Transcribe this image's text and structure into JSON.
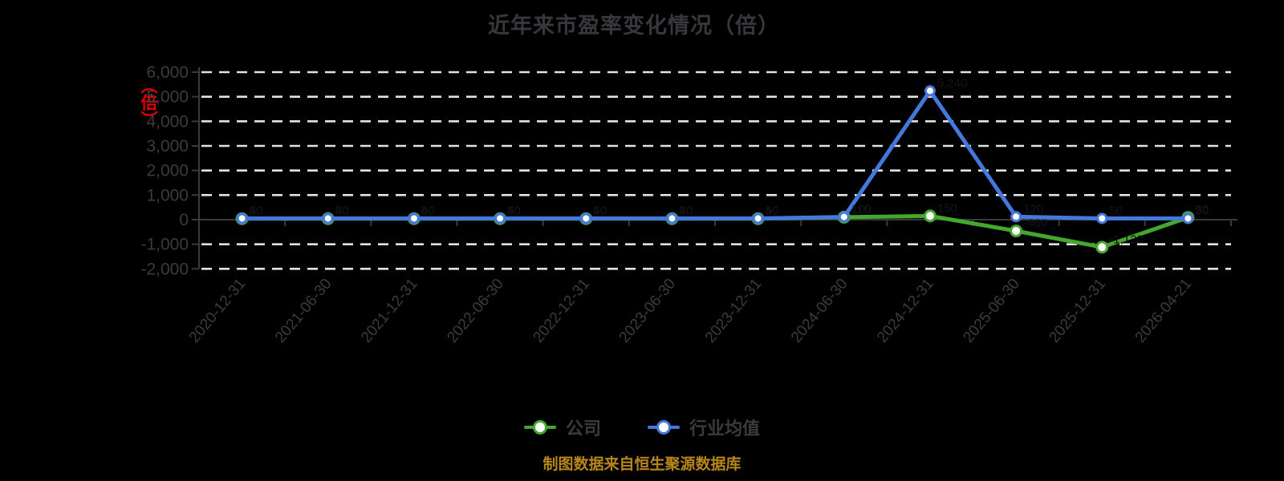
{
  "title": "近年来市盈率变化情况（倍）",
  "y_axis_unit": "（倍）",
  "footer": "制图数据来自恒生聚源数据库",
  "legend": [
    {
      "label": "公司",
      "color": "#43a82c"
    },
    {
      "label": "行业均值",
      "color": "#4478dd"
    }
  ],
  "colors": {
    "background": "#000000",
    "title_text": "#38383c",
    "axis_text": "#3b3b3f",
    "axis_line": "#3a3a3a",
    "gridline": "#e2e2e2",
    "company_green": "#43a82c",
    "industry_blue": "#4478dd",
    "footer_gold": "#b8861b",
    "unit_red": "#e60000",
    "point_label": "#14141c"
  },
  "chart_data": {
    "type": "line",
    "title": "近年来市盈率变化情况（倍）",
    "xlabel": "",
    "ylabel": "倍",
    "ylim": [
      -2000,
      6000
    ],
    "ytick_step": 1000,
    "y_tick_labels": [
      "6,000",
      "5,000",
      "4,000",
      "3,000",
      "2,000",
      "1,000",
      "0",
      "-1,000",
      "-2,000"
    ],
    "grid": "horizontal-dashed",
    "legend_position": "bottom",
    "categories": [
      "2020-12-31",
      "2021-06-30",
      "2021-12-31",
      "2022-06-30",
      "2022-12-31",
      "2023-06-30",
      "2023-12-31",
      "2024-06-30",
      "2024-12-31",
      "2025-06-30",
      "2025-12-31",
      "2026-04-21"
    ],
    "series": [
      {
        "name": "公司",
        "color": "#43a82c",
        "values": [
          40,
          40,
          40,
          40,
          40,
          40,
          40,
          100,
          150,
          -460,
          -1120,
          90
        ]
      },
      {
        "name": "行业均值",
        "color": "#4478dd",
        "values": [
          50,
          50,
          50,
          50,
          50,
          50,
          50,
          110,
          5240,
          120,
          50,
          50
        ]
      }
    ]
  }
}
